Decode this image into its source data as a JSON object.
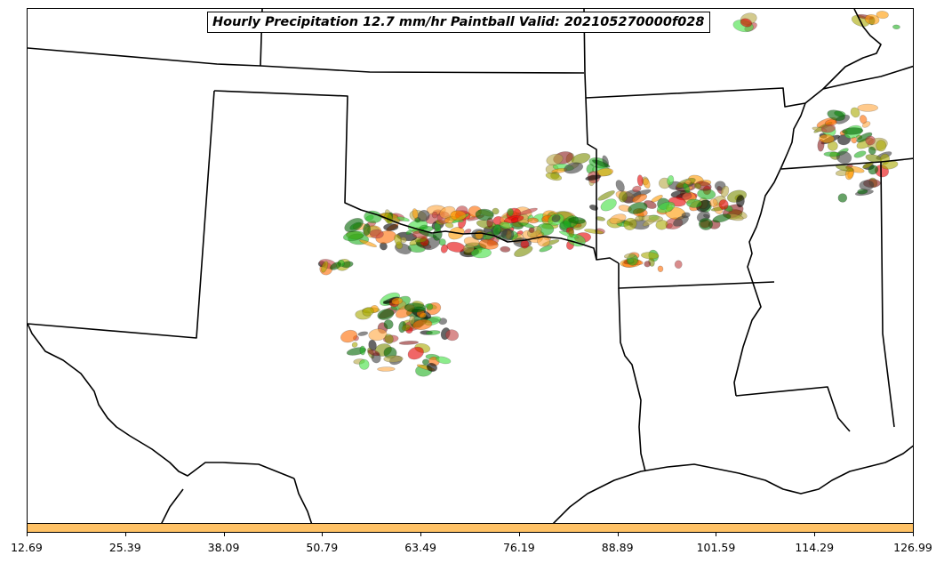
{
  "title": "Hourly Precipitation 12.7 mm/hr Paintball Valid: 202105270000f028",
  "colorbar": {
    "color": "#ffc266",
    "tick_labels": [
      "12.69",
      "25.39",
      "38.09",
      "50.79",
      "63.49",
      "76.19",
      "88.89",
      "101.59",
      "114.29",
      "126.99"
    ]
  },
  "member_colors": [
    "#e60000",
    "#ff6a00",
    "#ff9900",
    "#ffa640",
    "#a8a800",
    "#7a8c00",
    "#8b1a1a",
    "#c04040",
    "#20b020",
    "#40e040",
    "#006400",
    "#404040",
    "#000000",
    "#b5a642"
  ]
}
